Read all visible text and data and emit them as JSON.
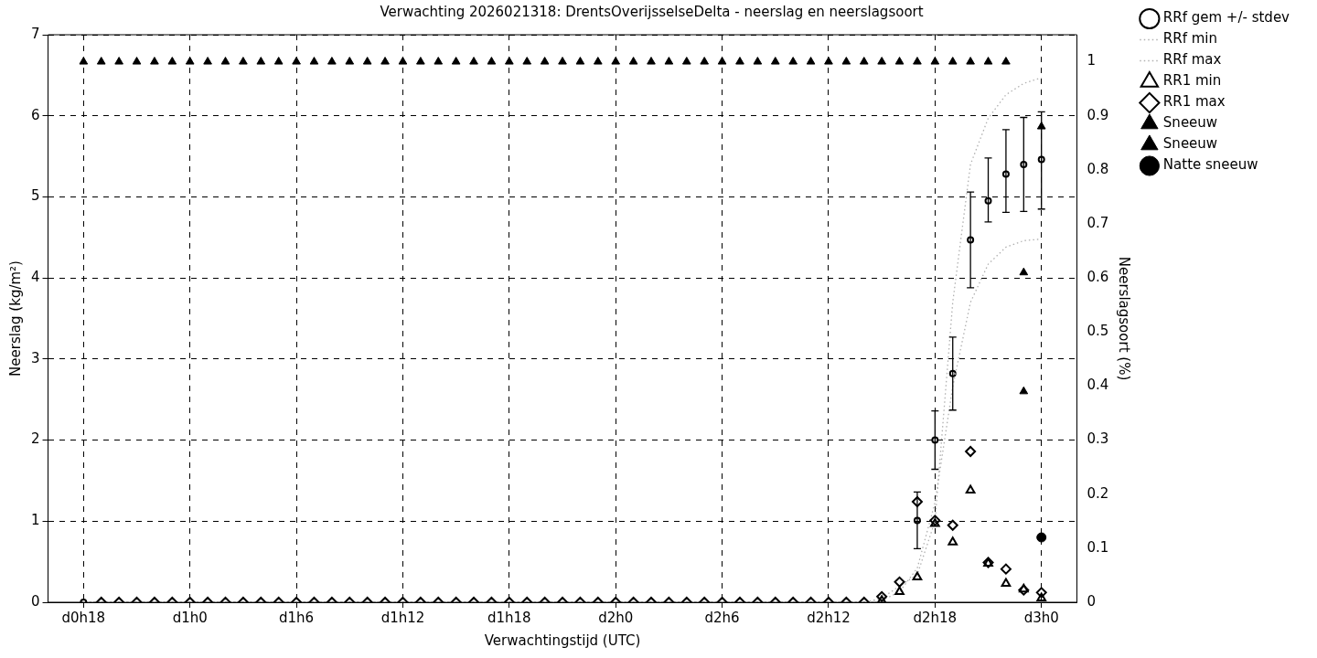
{
  "chart_data": {
    "type": "scatter",
    "title": "Verwachting 2026021318: DrentsOverijsselseDelta - neerslag en neerslagsoort",
    "xlabel": "Verwachtingstijd (UTC)",
    "ylabel": "Neerslag (kg/m²)",
    "y2label": "Neerslagsoort (%)",
    "categories": [
      "d0h18",
      null,
      null,
      null,
      null,
      null,
      "d1h0",
      null,
      null,
      null,
      null,
      null,
      "d1h6",
      null,
      null,
      null,
      null,
      null,
      "d1h12",
      null,
      null,
      null,
      null,
      null,
      "d1h18",
      null,
      null,
      null,
      null,
      null,
      "d2h0",
      null,
      null,
      null,
      null,
      null,
      "d2h6",
      null,
      null,
      null,
      null,
      null,
      "d2h12",
      null,
      null,
      null,
      null,
      null,
      "d2h18",
      null,
      null,
      null,
      null,
      null,
      "d3h0"
    ],
    "ylim": [
      0,
      7
    ],
    "yticks": [
      0,
      1,
      2,
      3,
      4,
      5,
      6,
      7
    ],
    "y2lim": [
      0,
      1.05
    ],
    "y2ticks": [
      0,
      0.1,
      0.2,
      0.3,
      0.4,
      0.5,
      0.6,
      0.7,
      0.8,
      0.9,
      1
    ],
    "grid": true,
    "legend": "top right",
    "series": [
      {
        "name": "RRf gem +/- stdev",
        "marker": "circle",
        "color": "#000000",
        "values": [
          0,
          null,
          null,
          null,
          null,
          null,
          null,
          null,
          null,
          null,
          null,
          null,
          null,
          null,
          null,
          null,
          null,
          null,
          null,
          null,
          null,
          null,
          null,
          null,
          null,
          null,
          null,
          null,
          null,
          null,
          null,
          null,
          null,
          null,
          null,
          null,
          null,
          null,
          null,
          null,
          null,
          null,
          null,
          null,
          null,
          null,
          null,
          1.01,
          2.0,
          2.82,
          4.47,
          4.95,
          5.28,
          5.4,
          5.46
        ],
        "errors": [
          null,
          null,
          null,
          null,
          null,
          null,
          null,
          null,
          null,
          null,
          null,
          null,
          null,
          null,
          null,
          null,
          null,
          null,
          null,
          null,
          null,
          null,
          null,
          null,
          null,
          null,
          null,
          null,
          null,
          null,
          null,
          null,
          null,
          null,
          null,
          null,
          null,
          null,
          null,
          null,
          null,
          null,
          null,
          null,
          null,
          null,
          null,
          [
            0.66,
            1.36
          ],
          [
            1.64,
            2.36
          ],
          [
            2.37,
            3.27
          ],
          [
            3.88,
            5.06
          ],
          [
            4.69,
            5.48
          ],
          [
            4.81,
            5.83
          ],
          [
            4.82,
            5.98
          ],
          [
            4.85,
            6.05
          ]
        ]
      },
      {
        "name": "RRf min",
        "type": "line",
        "marker": "none",
        "line_style": "dotted",
        "color": "#b0b0b0",
        "values": [
          0,
          0,
          0,
          0,
          0,
          0,
          0,
          0,
          0,
          0,
          0,
          0,
          0,
          0,
          0,
          0,
          0,
          0,
          0,
          0,
          0,
          0,
          0,
          0,
          0,
          0,
          0,
          0,
          0,
          0,
          0,
          0,
          0,
          0,
          0,
          0,
          0,
          0,
          0,
          0,
          0,
          0,
          0,
          0,
          0,
          0.02,
          0.13,
          0.42,
          1.23,
          2.66,
          3.7,
          4.17,
          4.38,
          4.46,
          4.48
        ]
      },
      {
        "name": "RRf max",
        "type": "line",
        "marker": "none",
        "line_style": "dotted",
        "color": "#b0b0b0",
        "values": [
          0,
          0,
          0,
          0,
          0,
          0,
          0,
          0,
          0,
          0,
          0,
          0,
          0,
          0,
          0,
          0,
          0,
          0,
          0,
          0,
          0,
          0,
          0,
          0,
          0,
          0,
          0,
          0,
          0,
          0,
          0,
          0,
          0,
          0,
          0,
          0,
          0,
          0,
          0,
          0,
          0,
          0,
          0,
          0,
          0,
          0.05,
          0.2,
          0.34,
          1.0,
          3.7,
          5.4,
          5.97,
          6.26,
          6.4,
          6.47
        ]
      },
      {
        "name": "RR1 min",
        "marker": "triangle",
        "color": "#000000",
        "values": [
          null,
          null,
          null,
          null,
          null,
          null,
          null,
          null,
          null,
          null,
          null,
          null,
          null,
          null,
          null,
          null,
          null,
          null,
          null,
          null,
          null,
          null,
          null,
          null,
          null,
          null,
          null,
          null,
          null,
          null,
          null,
          null,
          null,
          null,
          null,
          null,
          null,
          null,
          null,
          null,
          null,
          null,
          null,
          null,
          null,
          0.02,
          0.13,
          0.31,
          0.97,
          0.74,
          1.38,
          0.48,
          0.23,
          0.16,
          0.05
        ]
      },
      {
        "name": "RR1 max",
        "marker": "diamond",
        "color": "#000000",
        "values": [
          null,
          0,
          0,
          0,
          0,
          0,
          0,
          0,
          0,
          0,
          0,
          0,
          0,
          0,
          0,
          0,
          0,
          0,
          0,
          0,
          0,
          0,
          0,
          0,
          0,
          0,
          0,
          0,
          0,
          0,
          0,
          0,
          0,
          0,
          0,
          0,
          0,
          0,
          0,
          0,
          0,
          0,
          0,
          0,
          0,
          0.07,
          0.25,
          1.24,
          1.01,
          0.95,
          1.86,
          0.49,
          0.41,
          0.15,
          0.12
        ]
      },
      {
        "name": "Sneeuw",
        "marker": "triangle",
        "axis": "y2",
        "color": "#000000",
        "values": [
          1,
          1,
          1,
          1,
          1,
          1,
          1,
          1,
          1,
          1,
          1,
          1,
          1,
          1,
          1,
          1,
          1,
          1,
          1,
          1,
          1,
          1,
          1,
          1,
          1,
          1,
          1,
          1,
          1,
          1,
          1,
          1,
          1,
          1,
          1,
          1,
          1,
          1,
          1,
          1,
          1,
          1,
          1,
          1,
          1,
          1,
          1,
          1,
          1,
          1,
          1,
          1,
          1,
          0.61,
          null
        ]
      },
      {
        "name": "Sneeuw",
        "marker": "triangle",
        "axis": "y2",
        "color": "#000000",
        "values": [
          null,
          null,
          null,
          null,
          null,
          null,
          null,
          null,
          null,
          null,
          null,
          null,
          null,
          null,
          null,
          null,
          null,
          null,
          null,
          null,
          null,
          null,
          null,
          null,
          null,
          null,
          null,
          null,
          null,
          null,
          null,
          null,
          null,
          null,
          null,
          null,
          null,
          null,
          null,
          null,
          null,
          null,
          null,
          null,
          null,
          null,
          null,
          null,
          null,
          null,
          null,
          null,
          null,
          0.39,
          0.88
        ]
      },
      {
        "name": "Natte sneeuw",
        "marker": "circle",
        "axis": "y2",
        "color": "#000000",
        "values": [
          null,
          null,
          null,
          null,
          null,
          null,
          null,
          null,
          null,
          null,
          null,
          null,
          null,
          null,
          null,
          null,
          null,
          null,
          null,
          null,
          null,
          null,
          null,
          null,
          null,
          null,
          null,
          null,
          null,
          null,
          null,
          null,
          null,
          null,
          null,
          null,
          null,
          null,
          null,
          null,
          null,
          null,
          null,
          null,
          null,
          null,
          null,
          null,
          null,
          null,
          null,
          null,
          null,
          null,
          0.12
        ]
      }
    ]
  }
}
